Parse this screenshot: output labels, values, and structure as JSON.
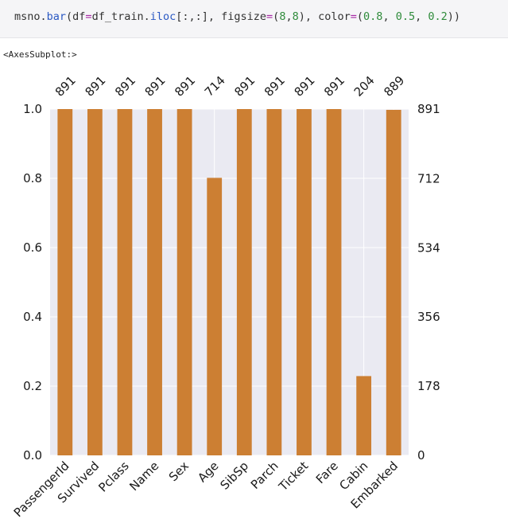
{
  "code": {
    "segments": [
      {
        "text": "msno.",
        "cls": ""
      },
      {
        "text": "bar",
        "cls": "tok-fn"
      },
      {
        "text": "(df",
        "cls": ""
      },
      {
        "text": "=",
        "cls": "tok-op"
      },
      {
        "text": "df_train.",
        "cls": ""
      },
      {
        "text": "iloc",
        "cls": "tok-fn"
      },
      {
        "text": "[:,:], figsize",
        "cls": ""
      },
      {
        "text": "=",
        "cls": "tok-op"
      },
      {
        "text": "(",
        "cls": ""
      },
      {
        "text": "8",
        "cls": "tok-num"
      },
      {
        "text": ",",
        "cls": ""
      },
      {
        "text": "8",
        "cls": "tok-num"
      },
      {
        "text": "), color",
        "cls": ""
      },
      {
        "text": "=",
        "cls": "tok-op"
      },
      {
        "text": "(",
        "cls": ""
      },
      {
        "text": "0.8",
        "cls": "tok-num"
      },
      {
        "text": ", ",
        "cls": ""
      },
      {
        "text": "0.5",
        "cls": "tok-num"
      },
      {
        "text": ", ",
        "cls": ""
      },
      {
        "text": "0.2",
        "cls": "tok-num"
      },
      {
        "text": "))",
        "cls": ""
      }
    ]
  },
  "output": {
    "text": "<AxesSubplot:>"
  },
  "chart_data": {
    "type": "bar",
    "categories": [
      "PassengerId",
      "Survived",
      "Pclass",
      "Name",
      "Sex",
      "Age",
      "SibSp",
      "Parch",
      "Ticket",
      "Fare",
      "Cabin",
      "Embarked"
    ],
    "values": [
      891,
      891,
      891,
      891,
      891,
      714,
      891,
      891,
      891,
      891,
      204,
      889
    ],
    "top_labels": [
      "891",
      "891",
      "891",
      "891",
      "891",
      "714",
      "891",
      "891",
      "891",
      "891",
      "204",
      "889"
    ],
    "left_ticks": [
      "0.0",
      "0.2",
      "0.4",
      "0.6",
      "0.8",
      "1.0"
    ],
    "right_ticks": [
      "0",
      "178",
      "356",
      "534",
      "712",
      "891"
    ],
    "ylim": [
      0,
      1
    ],
    "total": 891,
    "bar_color": "#cc7f33",
    "background_color": "#eaeaf2",
    "grid": true
  }
}
